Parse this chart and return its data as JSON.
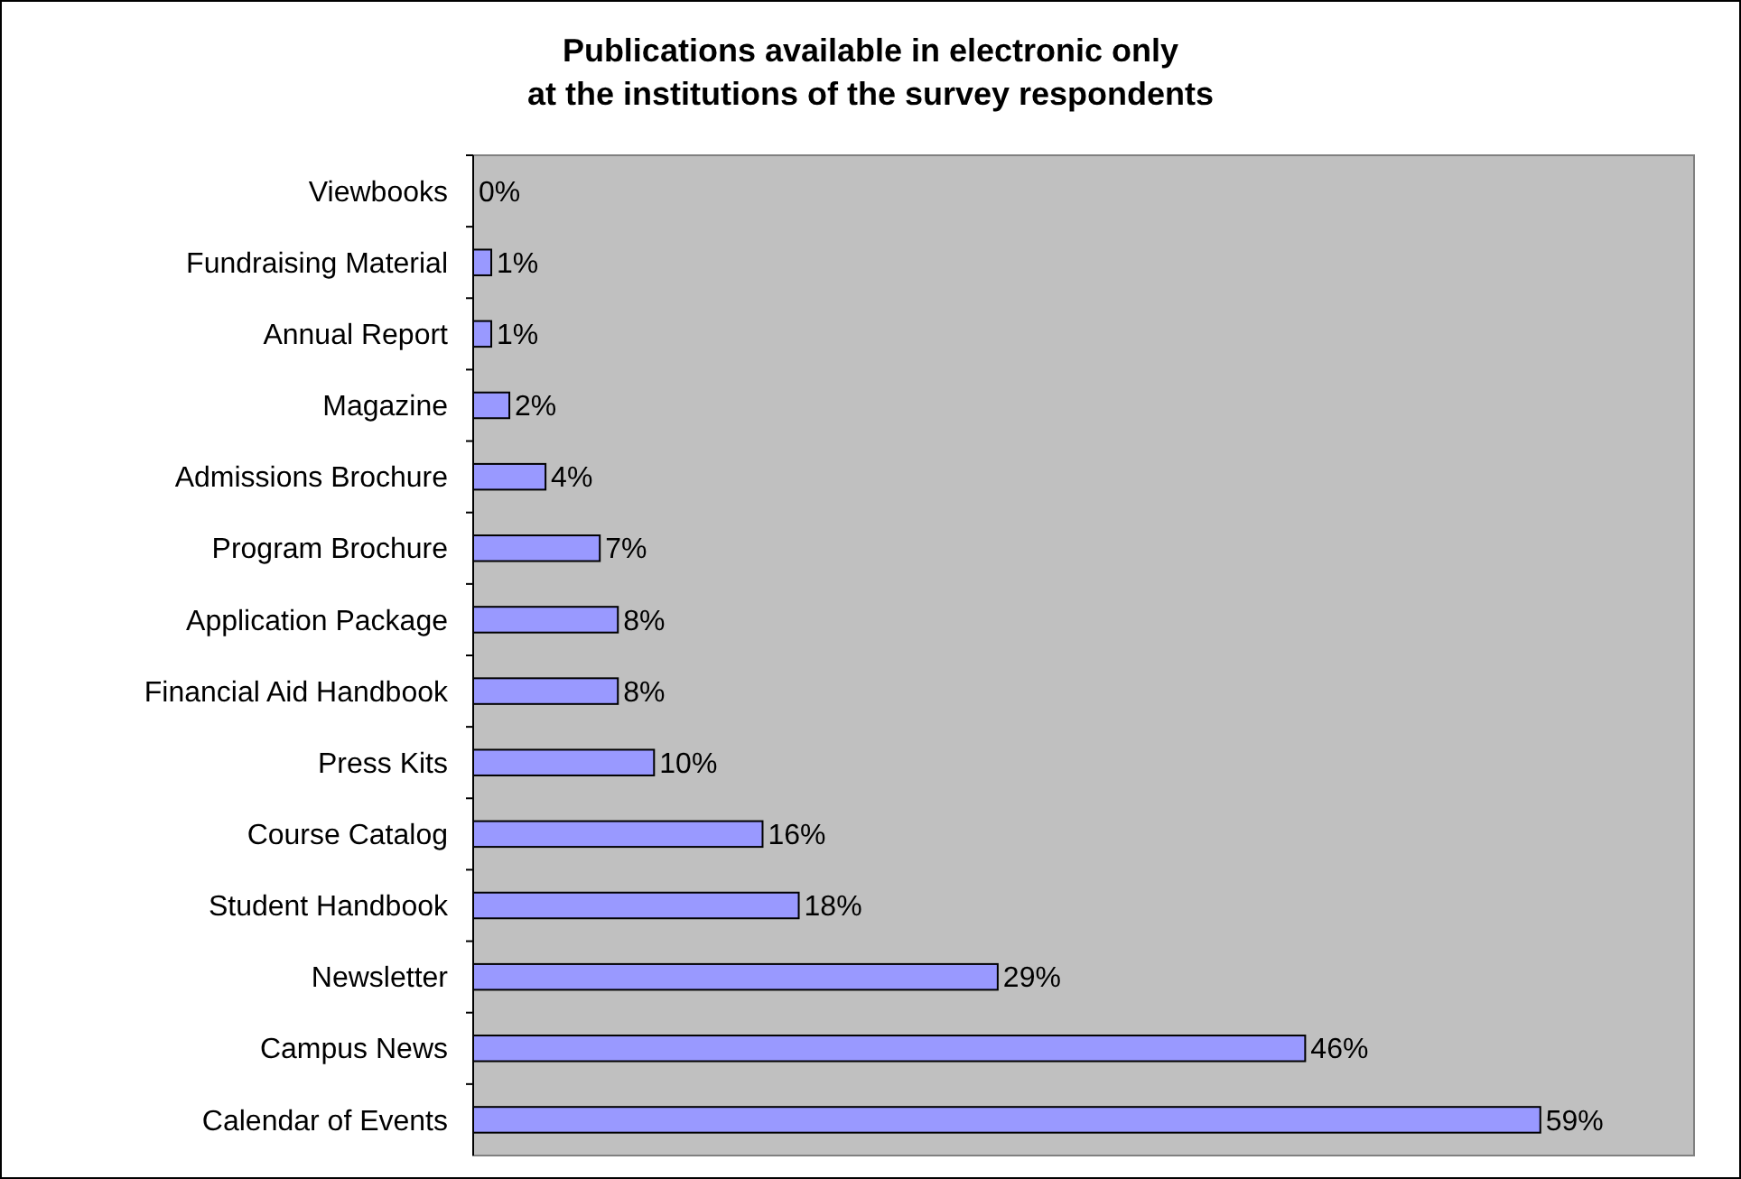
{
  "chart_data": {
    "type": "bar",
    "orientation": "horizontal",
    "title": "Publications available in electronic only\nat the institutions of the survey respondents",
    "categories": [
      "Viewbooks",
      "Fundraising Material",
      "Annual Report",
      "Magazine",
      "Admissions Brochure",
      "Program Brochure",
      "Application Package",
      "Financial Aid Handbook",
      "Press Kits",
      "Course Catalog",
      "Student Handbook",
      "Newsletter",
      "Campus News",
      "Calendar of Events"
    ],
    "values": [
      0,
      1,
      1,
      2,
      4,
      7,
      8,
      8,
      10,
      16,
      18,
      29,
      46,
      59
    ],
    "value_labels": [
      "0%",
      "1%",
      "1%",
      "2%",
      "4%",
      "7%",
      "8%",
      "8%",
      "10%",
      "16%",
      "18%",
      "29%",
      "46%",
      "59%"
    ],
    "color": "#9999ff",
    "xlim": [
      0,
      67.5
    ],
    "tick_labels": "y",
    "grid": false
  }
}
